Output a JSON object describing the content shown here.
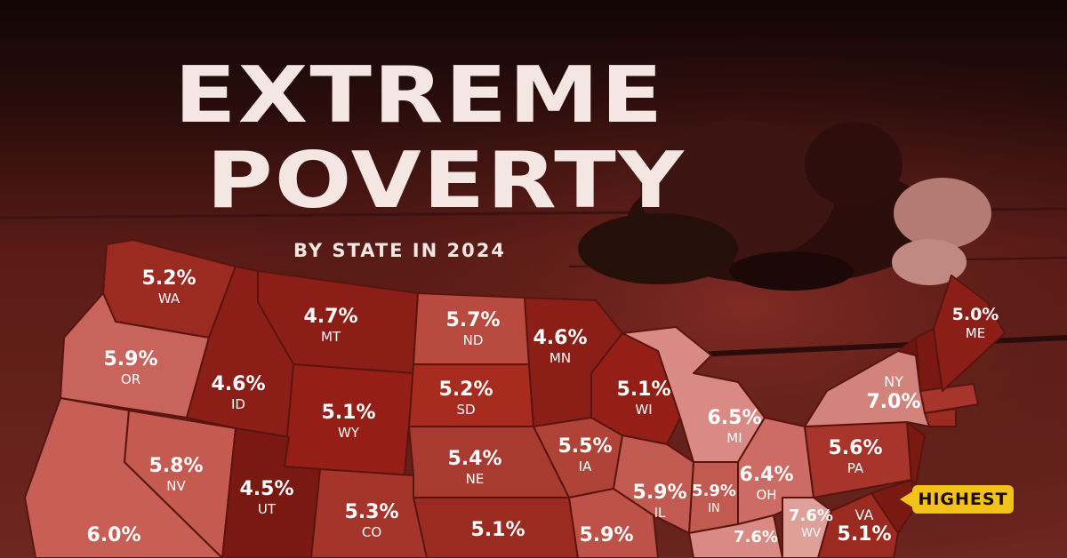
{
  "title_line1": "EXTREME",
  "title_line2": "POVERTY",
  "subtitle": "BY STATE IN 2024",
  "badge": {
    "label": "HIGHEST"
  },
  "colors": {
    "text": "#f4e6e2",
    "badge": "#f2c21b",
    "map_light": "#cf6f6a",
    "map_mid": "#b94a3d",
    "map_dark": "#8b1f17",
    "map_darkest": "#6e140f",
    "border": "#5a1410"
  },
  "states": [
    {
      "abbr": "WA",
      "value": "5.2%"
    },
    {
      "abbr": "OR",
      "value": "5.9%"
    },
    {
      "abbr": "ID",
      "value": "4.6%"
    },
    {
      "abbr": "MT",
      "value": "4.7%"
    },
    {
      "abbr": "ND",
      "value": "5.7%"
    },
    {
      "abbr": "MN",
      "value": "4.6%"
    },
    {
      "abbr": "WI",
      "value": "5.1%"
    },
    {
      "abbr": "SD",
      "value": "5.2%"
    },
    {
      "abbr": "WY",
      "value": "5.1%"
    },
    {
      "abbr": "NV",
      "value": "5.8%"
    },
    {
      "abbr": "UT",
      "value": "4.5%"
    },
    {
      "abbr": "CO",
      "value": "5.3%"
    },
    {
      "abbr": "NE",
      "value": "5.4%"
    },
    {
      "abbr": "IA",
      "value": "5.5%"
    },
    {
      "abbr": "IL",
      "value": "5.9%"
    },
    {
      "abbr": "IN",
      "value": "5.9%"
    },
    {
      "abbr": "MI",
      "value": "6.5%"
    },
    {
      "abbr": "OH",
      "value": "6.4%"
    },
    {
      "abbr": "PA",
      "value": "5.6%"
    },
    {
      "abbr": "NY",
      "value": "7.0%"
    },
    {
      "abbr": "ME",
      "value": "5.0%"
    },
    {
      "abbr": "WV",
      "value": "7.6%"
    },
    {
      "abbr": "VA",
      "value": "5.1%"
    }
  ],
  "unlabeled_values": [
    {
      "value": "6.0%"
    },
    {
      "value": "5.1%"
    },
    {
      "value": "5.9%"
    },
    {
      "value": "7.6%"
    }
  ]
}
